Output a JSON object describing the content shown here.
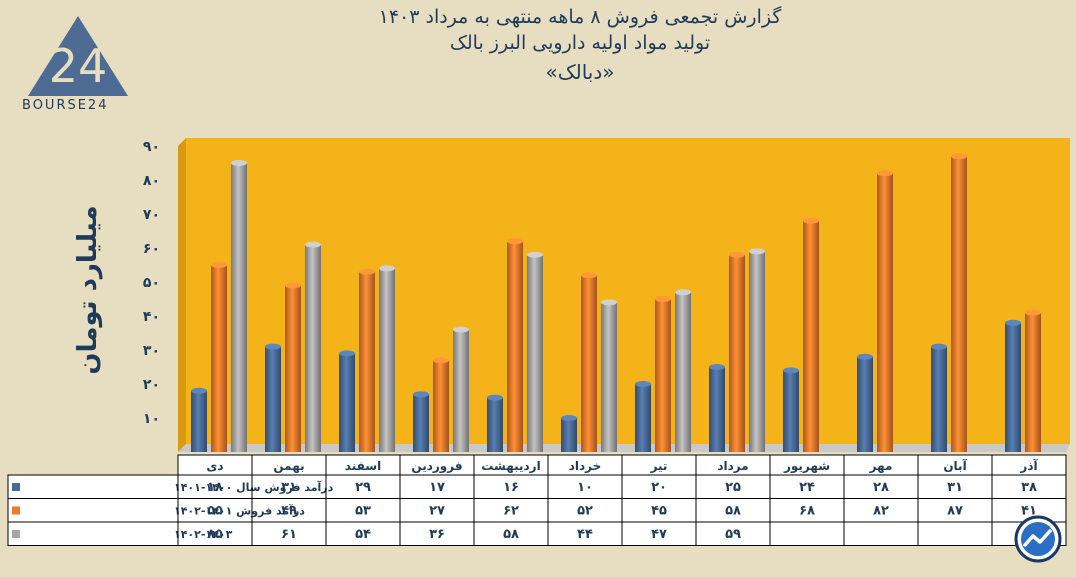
{
  "header": {
    "line1": "گزارش تجمعی فروش ۸ ماهه منتهی به مرداد ۱۴۰۳",
    "line2": "تولید مواد اولیه دارویی البرز بالک",
    "line3": "«دبالک»"
  },
  "logo": {
    "mark": "24",
    "text": "BOURSE24",
    "icon": "bourse24-logo"
  },
  "colors": {
    "plot_bg": "#f5b31a",
    "series": [
      "#4a6b97",
      "#ee7a2d",
      "#a6a6a6"
    ],
    "text": "#1f3b5a"
  },
  "chart_data": {
    "type": "bar",
    "title": "گزارش تجمعی فروش ۸ ماهه منتهی به مرداد ۱۴۰۳",
    "ylabel": "میلیارد تومان",
    "ylim": [
      0,
      90
    ],
    "yticks": [
      "",
      "۱۰",
      "۲۰",
      "۳۰",
      "۴۰",
      "۵۰",
      "۶۰",
      "۷۰",
      "۸۰",
      "۹۰"
    ],
    "categories": [
      "دی",
      "بهمن",
      "اسفند",
      "فروردین",
      "اردیبهشت",
      "خرداد",
      "تیر",
      "مرداد",
      "شهریور",
      "مهر",
      "آبان",
      "آذر"
    ],
    "series": [
      {
        "name": "درآمد فروش سال ۱۴۰۰-۱۴۰۱",
        "values": [
          18,
          31,
          29,
          17,
          16,
          10,
          20,
          25,
          24,
          28,
          31,
          38
        ],
        "labels": [
          "۱۸",
          "۳۱",
          "۲۹",
          "۱۷",
          "۱۶",
          "۱۰",
          "۲۰",
          "۲۵",
          "۲۴",
          "۲۸",
          "۳۱",
          "۳۸"
        ]
      },
      {
        "name": "درآمد فروش ۱۴۰۱-۱۴۰۲",
        "values": [
          55,
          49,
          53,
          27,
          62,
          52,
          45,
          58,
          68,
          82,
          87,
          41
        ],
        "labels": [
          "۵۵",
          "۴۹",
          "۵۳",
          "۲۷",
          "۶۲",
          "۵۲",
          "۴۵",
          "۵۸",
          "۶۸",
          "۸۲",
          "۸۷",
          "۴۱"
        ]
      },
      {
        "name": "۱۴۰۲-۱۴۰۳",
        "values": [
          85,
          61,
          54,
          36,
          58,
          44,
          47,
          59,
          null,
          null,
          null,
          null
        ],
        "labels": [
          "۸۵",
          "۶۱",
          "۵۴",
          "۳۶",
          "۵۸",
          "۴۴",
          "۴۷",
          "۵۹",
          "",
          "",
          "",
          ""
        ]
      }
    ],
    "grid": false,
    "legend": "data table below chart"
  },
  "badge": {
    "icon": "trend-arrow-badge-icon"
  }
}
